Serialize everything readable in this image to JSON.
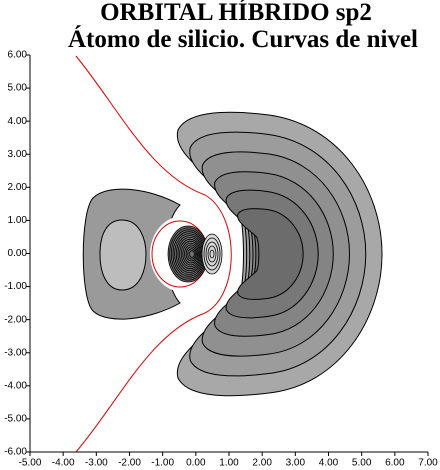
{
  "chart_data": {
    "type": "contour",
    "title": "ORBITAL HÍBRIDO sp2",
    "subtitle": "Átomo de silicio. Curvas de nivel",
    "xlim": [
      -5,
      7
    ],
    "ylim": [
      -6,
      6
    ],
    "xticks": [
      {
        "value": -5,
        "label": "-5.00"
      },
      {
        "value": -4,
        "label": "-4.00"
      },
      {
        "value": -3,
        "label": "-3.00"
      },
      {
        "value": -2,
        "label": "-2.00"
      },
      {
        "value": -1,
        "label": "-1.00"
      },
      {
        "value": 0,
        "label": "0.00"
      },
      {
        "value": 1,
        "label": "1.00"
      },
      {
        "value": 2,
        "label": "2.00"
      },
      {
        "value": 3,
        "label": "3.00"
      },
      {
        "value": 4,
        "label": "4.00"
      },
      {
        "value": 5,
        "label": "5.00"
      },
      {
        "value": 6,
        "label": "6.00"
      },
      {
        "value": 7,
        "label": "7.00"
      }
    ],
    "yticks": [
      {
        "value": -6,
        "label": "-6.00"
      },
      {
        "value": -5,
        "label": "-5.00"
      },
      {
        "value": -4,
        "label": "-4.00"
      },
      {
        "value": -3,
        "label": "-3.00"
      },
      {
        "value": -2,
        "label": "-2.00"
      },
      {
        "value": -1,
        "label": "-1.00"
      },
      {
        "value": 0,
        "label": "0.00"
      },
      {
        "value": 1,
        "label": "1.00"
      },
      {
        "value": 2,
        "label": "2.00"
      },
      {
        "value": 3,
        "label": "3.00"
      },
      {
        "value": 4,
        "label": "4.00"
      },
      {
        "value": 5,
        "label": "5.00"
      },
      {
        "value": 6,
        "label": "6.00"
      }
    ]
  }
}
